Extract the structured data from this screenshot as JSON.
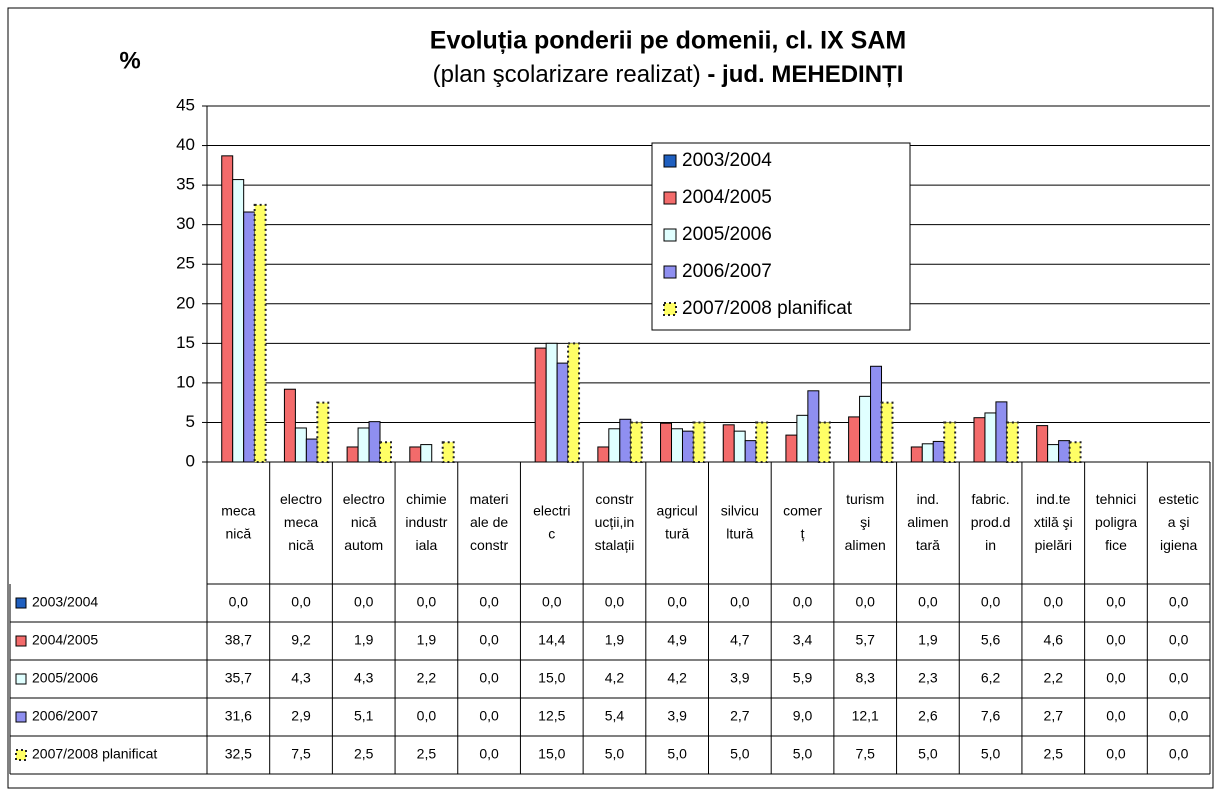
{
  "chart_data": {
    "type": "bar",
    "title": "Evoluția ponderii pe domenii, cl. IX SAM",
    "subtitle": [
      "(plan şcolarizare realizat)",
      "- jud. MEHEDINȚI"
    ],
    "y_label": "%",
    "categories": [
      "meca\nnică",
      "electro\nmeca\nnică",
      "electro\nnică\nautom",
      "chimie\nindustr\niala",
      "materi\nale de\nconstr",
      "electri\nc",
      "constr\nucții,in\nstalații",
      "agricul\ntură",
      "silvicu\nltură",
      "comer\nț",
      "turism\nşi\nalimen",
      "ind.\nalimen\ntară",
      "fabric.\nprod.d\nin",
      "ind.te\nxtilă şi\npielări",
      "tehnici\npoligra\nfice",
      "estetic\na şi\nigiena"
    ],
    "series": [
      {
        "name": "2003/2004",
        "color": "#1f5fbf",
        "values": [
          0,
          0,
          0,
          0,
          0,
          0,
          0,
          0,
          0,
          0,
          0,
          0,
          0,
          0,
          0,
          0
        ],
        "value_labels": [
          "0,0",
          "0,0",
          "0,0",
          "0,0",
          "0,0",
          "0,0",
          "0,0",
          "0,0",
          "0,0",
          "0,0",
          "0,0",
          "0,0",
          "0,0",
          "0,0",
          "0,0",
          "0,0"
        ]
      },
      {
        "name": "2004/2005",
        "color": "#f36b6b",
        "values": [
          38.7,
          9.2,
          1.9,
          1.9,
          0,
          14.4,
          1.9,
          4.9,
          4.7,
          3.4,
          5.7,
          1.9,
          5.6,
          4.6,
          0,
          0
        ],
        "value_labels": [
          "38,7",
          "9,2",
          "1,9",
          "1,9",
          "0,0",
          "14,4",
          "1,9",
          "4,9",
          "4,7",
          "3,4",
          "5,7",
          "1,9",
          "5,6",
          "4,6",
          "0,0",
          "0,0"
        ]
      },
      {
        "name": "2005/2006",
        "color": "#e0ffff",
        "values": [
          35.7,
          4.3,
          4.3,
          2.2,
          0,
          15.0,
          4.2,
          4.2,
          3.9,
          5.9,
          8.3,
          2.3,
          6.2,
          2.2,
          0,
          0
        ],
        "value_labels": [
          "35,7",
          "4,3",
          "4,3",
          "2,2",
          "0,0",
          "15,0",
          "4,2",
          "4,2",
          "3,9",
          "5,9",
          "8,3",
          "2,3",
          "6,2",
          "2,2",
          "0,0",
          "0,0"
        ]
      },
      {
        "name": "2006/2007",
        "color": "#8f8ff0",
        "values": [
          31.6,
          2.9,
          5.1,
          0,
          0,
          12.5,
          5.4,
          3.9,
          2.7,
          9.0,
          12.1,
          2.6,
          7.6,
          2.7,
          0,
          0
        ],
        "value_labels": [
          "31,6",
          "2,9",
          "5,1",
          "0,0",
          "0,0",
          "12,5",
          "5,4",
          "3,9",
          "2,7",
          "9,0",
          "12,1",
          "2,6",
          "7,6",
          "2,7",
          "0,0",
          "0,0"
        ]
      },
      {
        "name": "2007/2008 planificat",
        "color": "#ffff66",
        "values": [
          32.5,
          7.5,
          2.5,
          2.5,
          0,
          15.0,
          5.0,
          5.0,
          5.0,
          5.0,
          7.5,
          5.0,
          5.0,
          2.5,
          0,
          0
        ],
        "value_labels": [
          "32,5",
          "7,5",
          "2,5",
          "2,5",
          "0,0",
          "15,0",
          "5,0",
          "5,0",
          "5,0",
          "5,0",
          "7,5",
          "5,0",
          "5,0",
          "2,5",
          "0,0",
          "0,0"
        ]
      }
    ],
    "ylim": [
      0,
      45
    ],
    "yticks": [
      0,
      5,
      10,
      15,
      20,
      25,
      30,
      35,
      40,
      45
    ],
    "grid": true,
    "legend": "upper right"
  }
}
